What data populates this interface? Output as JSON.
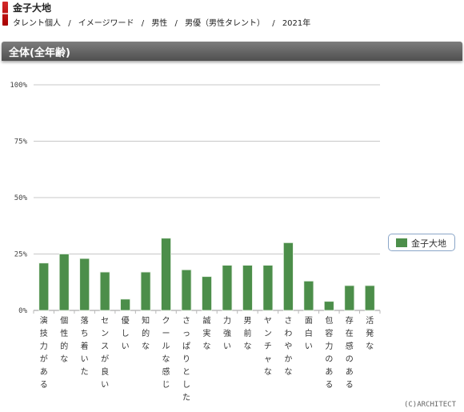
{
  "header": {
    "name": "金子大地",
    "breadcrumb": [
      "タレント個人",
      "/",
      "イメージワード",
      "/",
      "男性",
      "/",
      "男優（男性タレント）",
      "/",
      "2021年"
    ]
  },
  "section": {
    "title": "全体(全年齢)"
  },
  "legend": {
    "label": "金子大地",
    "color": "#4c8e4a"
  },
  "copyright": "(C)ARCHITECT",
  "chart_data": {
    "type": "bar",
    "categories": [
      "演技力がある",
      "個性的な",
      "落ち着いた",
      "センスが良い",
      "優しい",
      "知的な",
      "クールな感じ",
      "さっぱりとした",
      "誠実な",
      "力強い",
      "男前な",
      "ヤンチャな",
      "さわやかな",
      "面白い",
      "包容力のある",
      "存在感のある",
      "活発な"
    ],
    "series": [
      {
        "name": "金子大地",
        "values": [
          21,
          25,
          23,
          17,
          5,
          17,
          32,
          18,
          15,
          20,
          20,
          20,
          30,
          13,
          4,
          11,
          11
        ]
      }
    ],
    "yticks": [
      "0%",
      "25%",
      "50%",
      "75%",
      "100%"
    ],
    "ylim": [
      0,
      100
    ],
    "legend_position": "right",
    "grid": true
  }
}
